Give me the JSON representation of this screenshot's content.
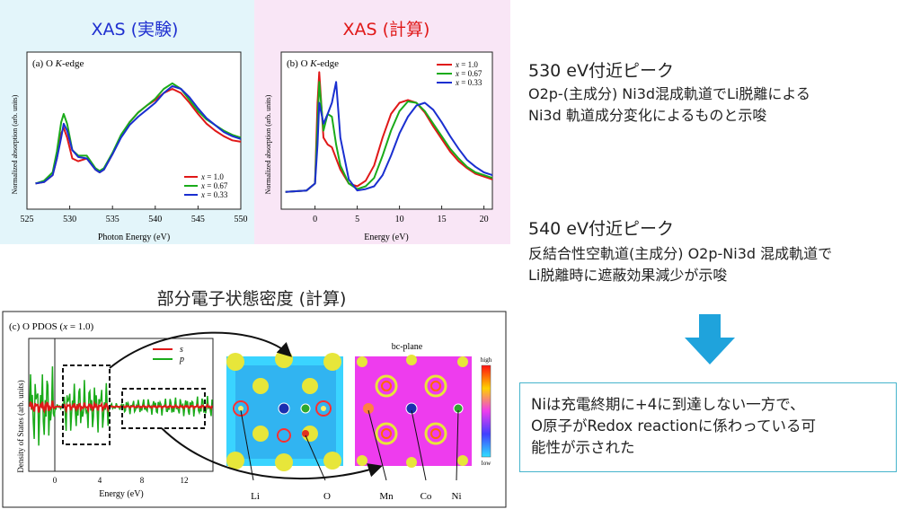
{
  "headings": {
    "xas_exp": "XAS (実験)",
    "xas_calc": "XAS (計算)",
    "pdos": "部分電子状態密度 (計算)"
  },
  "colors": {
    "exp_bg": "#e3f5fa",
    "calc_bg": "#f9e6f6",
    "exp_heading": "#1f2fd0",
    "calc_heading": "#e01818",
    "arrow": "#1fa3dc",
    "box_border": "#46b4cc"
  },
  "chart_a": {
    "label": "(a) O ",
    "label_k": "K",
    "label_tail": "-edge",
    "ylabel": "Normalized absorption (arb. units)",
    "xlabel": "Photon Energy (eV)",
    "xticks": [
      "525",
      "530",
      "535",
      "540",
      "545",
      "550"
    ],
    "legend": [
      "= 1.0",
      "= 0.67",
      "= 0.33"
    ]
  },
  "chart_b": {
    "label": "(b) O ",
    "label_k": "K",
    "label_tail": "-edge",
    "ylabel": "Normalized absorption (arb. units)",
    "xlabel": "Energy (eV)",
    "xticks": [
      "0",
      "5",
      "10",
      "15",
      "20"
    ],
    "legend": [
      "= 1.0",
      "= 0.67",
      "= 0.33"
    ]
  },
  "chart_c": {
    "label": "(c) O PDOS (",
    "label_x": "x",
    "label_tail": " = 1.0)",
    "ylabel": "Density of States (arb. units)",
    "xlabel": "Energy (eV)",
    "xticks": [
      "0",
      "4",
      "8",
      "12"
    ],
    "legend": [
      "s",
      "p"
    ]
  },
  "maps": {
    "title": "bc-plane",
    "scale_high": "high",
    "scale_low": "low",
    "labels": [
      "Li",
      "O",
      "Mn",
      "Co",
      "Ni"
    ]
  },
  "legend_var": "x",
  "notes": [
    {
      "title": "530 eV付近ピーク",
      "lines": [
        "O2p-(主成分) Ni3d混成軌道でLi脱離による",
        "Ni3d 軌道成分変化によるものと示唆"
      ]
    },
    {
      "title": "540 eV付近ピーク",
      "lines": [
        "反結合性空軌道(主成分) O2p-Ni3d 混成軌道で",
        "Li脱離時に遮蔽効果減少が示唆"
      ]
    }
  ],
  "conclusion": [
    "Niは充電終期に+4に到達しない一方で、",
    "O原子がRedox reactionに係わっている可",
    "能性が示された"
  ],
  "chart_data": [
    {
      "type": "line",
      "xlim": [
        525,
        550
      ],
      "series": [
        {
          "name": "x = 1.0",
          "color": "#e01818",
          "x": [
            526,
            527,
            528,
            528.5,
            529,
            529.3,
            529.7,
            530.3,
            531,
            532,
            533,
            533.5,
            534,
            535,
            536,
            537,
            538,
            539,
            540,
            541,
            542,
            543,
            544,
            545,
            546,
            547,
            548,
            549,
            550
          ],
          "y": [
            0.12,
            0.13,
            0.18,
            0.3,
            0.48,
            0.52,
            0.45,
            0.3,
            0.28,
            0.3,
            0.22,
            0.2,
            0.22,
            0.33,
            0.46,
            0.56,
            0.63,
            0.68,
            0.72,
            0.77,
            0.8,
            0.77,
            0.7,
            0.62,
            0.55,
            0.5,
            0.46,
            0.43,
            0.42
          ]
        },
        {
          "name": "x = 0.67",
          "color": "#1aab1a",
          "x": [
            526,
            527,
            528,
            528.5,
            529,
            529.3,
            529.7,
            530.3,
            531,
            532,
            533,
            533.5,
            534,
            535,
            536,
            537,
            538,
            539,
            540,
            541,
            542,
            543,
            544,
            545,
            546,
            547,
            548,
            549,
            550
          ],
          "y": [
            0.12,
            0.14,
            0.2,
            0.35,
            0.56,
            0.62,
            0.55,
            0.36,
            0.32,
            0.32,
            0.23,
            0.21,
            0.23,
            0.34,
            0.47,
            0.56,
            0.63,
            0.68,
            0.73,
            0.8,
            0.84,
            0.8,
            0.72,
            0.64,
            0.58,
            0.54,
            0.5,
            0.47,
            0.45
          ]
        },
        {
          "name": "x = 0.33",
          "color": "#1a2fd0",
          "x": [
            526,
            527,
            528,
            528.5,
            529,
            529.3,
            529.7,
            530.3,
            531,
            532,
            533,
            533.5,
            534,
            535,
            536,
            537,
            538,
            539,
            540,
            541,
            542,
            543,
            544,
            545,
            546,
            547,
            548,
            549,
            550
          ],
          "y": [
            0.12,
            0.13,
            0.18,
            0.3,
            0.45,
            0.55,
            0.5,
            0.36,
            0.31,
            0.3,
            0.22,
            0.2,
            0.22,
            0.33,
            0.45,
            0.54,
            0.6,
            0.65,
            0.7,
            0.77,
            0.82,
            0.8,
            0.74,
            0.66,
            0.59,
            0.54,
            0.49,
            0.46,
            0.44
          ]
        }
      ]
    },
    {
      "type": "line",
      "xlim": [
        -4,
        21
      ],
      "series": [
        {
          "name": "x = 1.0",
          "color": "#e01818",
          "x": [
            -3.5,
            -1,
            0,
            0.3,
            0.5,
            1,
            1.5,
            2,
            2.5,
            3,
            4,
            5,
            6,
            7,
            8,
            9,
            10,
            11,
            12,
            13,
            14,
            15,
            16,
            17,
            18,
            19,
            20,
            21
          ],
          "y": [
            0.06,
            0.07,
            0.12,
            0.7,
            0.92,
            0.45,
            0.4,
            0.38,
            0.3,
            0.22,
            0.12,
            0.1,
            0.14,
            0.25,
            0.45,
            0.62,
            0.7,
            0.72,
            0.7,
            0.63,
            0.53,
            0.44,
            0.35,
            0.28,
            0.23,
            0.19,
            0.17,
            0.15
          ]
        },
        {
          "name": "x = 0.67",
          "color": "#1aab1a",
          "x": [
            -3.5,
            -1,
            0,
            0.3,
            0.5,
            1,
            1.5,
            2,
            2.5,
            3,
            4,
            5,
            6,
            7,
            8,
            9,
            10,
            11,
            12,
            13,
            14,
            15,
            16,
            17,
            18,
            19,
            20,
            21
          ],
          "y": [
            0.06,
            0.07,
            0.12,
            0.55,
            0.85,
            0.5,
            0.62,
            0.6,
            0.4,
            0.25,
            0.12,
            0.08,
            0.1,
            0.16,
            0.32,
            0.5,
            0.64,
            0.71,
            0.7,
            0.64,
            0.55,
            0.46,
            0.37,
            0.3,
            0.24,
            0.2,
            0.18,
            0.16
          ]
        },
        {
          "name": "x = 0.33",
          "color": "#1a2fd0",
          "x": [
            -3.5,
            -1,
            0,
            0.3,
            0.5,
            1,
            1.5,
            2,
            2.5,
            3,
            4,
            5,
            6,
            7,
            8,
            9,
            10,
            11,
            12,
            13,
            14,
            15,
            16,
            17,
            18,
            19,
            20,
            21
          ],
          "y": [
            0.06,
            0.07,
            0.12,
            0.4,
            0.7,
            0.55,
            0.62,
            0.7,
            0.85,
            0.45,
            0.15,
            0.07,
            0.08,
            0.1,
            0.18,
            0.32,
            0.48,
            0.6,
            0.68,
            0.7,
            0.65,
            0.56,
            0.46,
            0.37,
            0.29,
            0.24,
            0.2,
            0.18
          ]
        }
      ]
    }
  ]
}
